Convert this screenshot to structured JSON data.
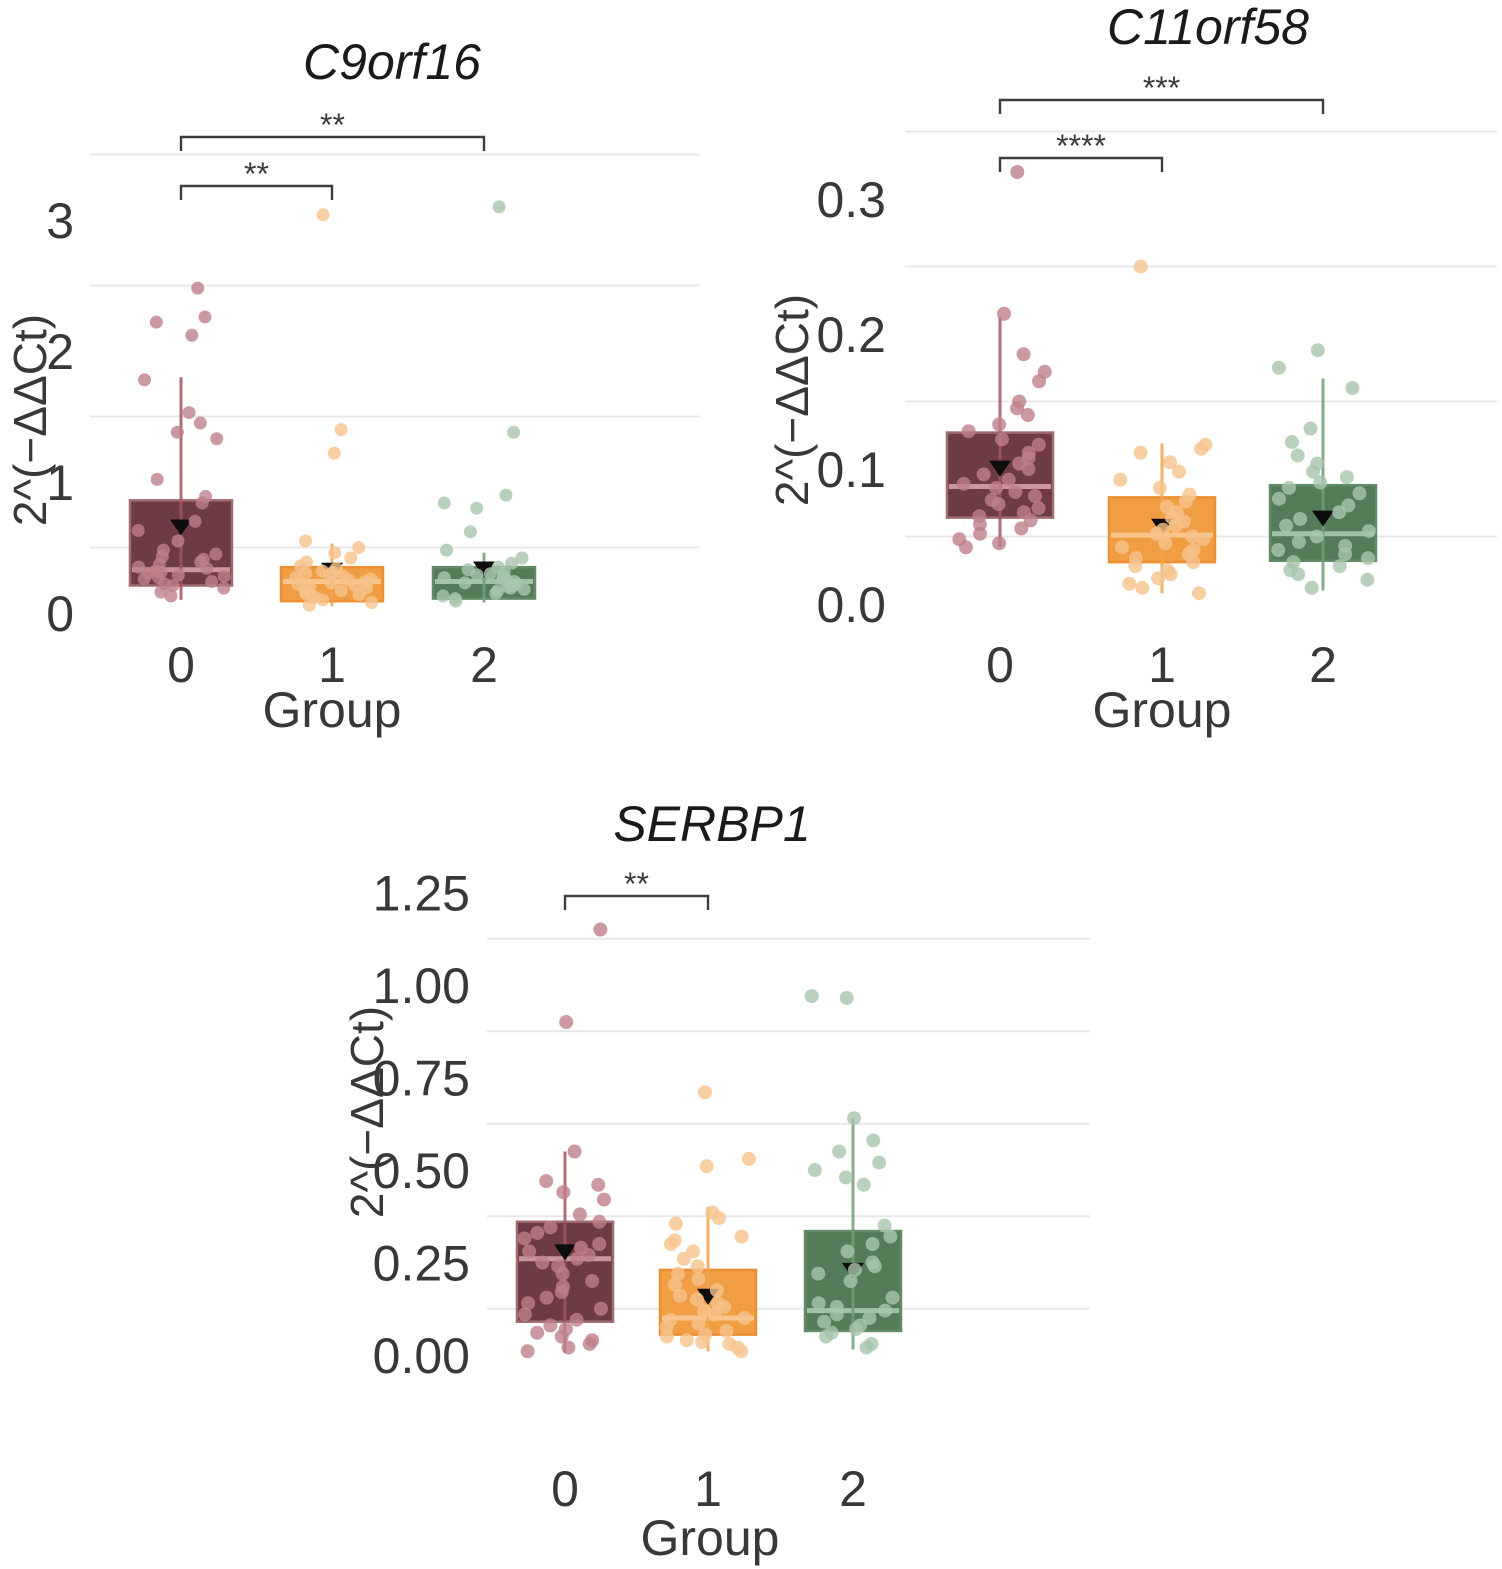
{
  "figure": {
    "background": "#ffffff",
    "gridline_color": "#e8e8e8",
    "text_color": "#383838",
    "title_color": "#1a1a1a",
    "bracket_color": "#3c3c3c",
    "mean_marker": "black-triangle-down",
    "mean_marker_color": "#0d0d0d"
  },
  "chart_data": [
    {
      "type": "bar",
      "subtype": "boxplot-with-jitter",
      "title": "C9orf16",
      "xlabel": "Group",
      "ylabel": "2^(−ΔΔCt)",
      "categories": [
        "0",
        "1",
        "2"
      ],
      "ytick_values": [
        0,
        1,
        2,
        3
      ],
      "ytick_labels": [
        "0",
        "1",
        "2",
        "3"
      ],
      "minor_gridlines": [
        0.5,
        1.5,
        2.5,
        3.5
      ],
      "ylim": [
        -0.15,
        3.6
      ],
      "grid": "minor-horizontal-only",
      "legend": "none",
      "groups": [
        {
          "category": "0",
          "colors": {
            "fill": "#6E3B44",
            "stroke": "#A06A71",
            "median": "#CB969C",
            "whisker": "#A25560",
            "point": "#BE8089"
          },
          "box": {
            "q1": 0.21,
            "median": 0.33,
            "q3": 0.86,
            "mean": 0.66,
            "whisker_low": 0.1,
            "whisker_high": 1.8
          },
          "points": [
            2.48,
            2.26,
            2.22,
            2.12,
            1.78,
            1.53,
            1.45,
            1.38,
            1.33,
            1.02,
            0.89,
            0.84,
            0.7,
            0.63,
            0.55,
            0.48,
            0.45,
            0.43,
            0.41,
            0.39,
            0.37,
            0.35,
            0.34,
            0.32,
            0.31,
            0.3,
            0.29,
            0.28,
            0.27,
            0.26,
            0.24,
            0.22,
            0.21,
            0.19,
            0.16,
            0.13
          ]
        },
        {
          "category": "1",
          "colors": {
            "fill": "#F19D43",
            "stroke": "#EC9035",
            "median": "#F8C68D",
            "whisker": "#F0A449",
            "point": "#F6C38C"
          },
          "box": {
            "q1": 0.09,
            "median": 0.24,
            "q3": 0.35,
            "mean": 0.33,
            "whisker_low": 0.05,
            "whisker_high": 0.53
          },
          "points": [
            3.04,
            1.4,
            1.22,
            0.55,
            0.5,
            0.46,
            0.42,
            0.39,
            0.36,
            0.34,
            0.32,
            0.31,
            0.3,
            0.29,
            0.28,
            0.27,
            0.26,
            0.25,
            0.24,
            0.23,
            0.22,
            0.21,
            0.2,
            0.19,
            0.18,
            0.17,
            0.16,
            0.15,
            0.14,
            0.13,
            0.12,
            0.1,
            0.08,
            0.06
          ]
        },
        {
          "category": "2",
          "colors": {
            "fill": "#567B59",
            "stroke": "#628C66",
            "median": "#A3C2A5",
            "whisker": "#729E77",
            "point": "#A8C6AB"
          },
          "box": {
            "q1": 0.11,
            "median": 0.24,
            "q3": 0.35,
            "mean": 0.34,
            "whisker_low": 0.08,
            "whisker_high": 0.46
          },
          "points": [
            3.1,
            1.38,
            0.9,
            0.84,
            0.8,
            0.62,
            0.48,
            0.42,
            0.38,
            0.35,
            0.33,
            0.31,
            0.3,
            0.29,
            0.28,
            0.27,
            0.26,
            0.25,
            0.24,
            0.23,
            0.22,
            0.21,
            0.2,
            0.19,
            0.18,
            0.17,
            0.15,
            0.13,
            0.11,
            0.09
          ]
        }
      ],
      "significance_brackets": [
        {
          "group_a": "0",
          "group_b": "1",
          "label": "**"
        },
        {
          "group_a": "0",
          "group_b": "2",
          "label": "**"
        }
      ]
    },
    {
      "type": "bar",
      "subtype": "boxplot-with-jitter",
      "title": "C11orf58",
      "xlabel": "Group",
      "ylabel": "2^(−ΔΔCt)",
      "categories": [
        "0",
        "1",
        "2"
      ],
      "ytick_values": [
        0,
        0.1,
        0.2,
        0.3
      ],
      "ytick_labels": [
        "0.0",
        "0.1",
        "0.2",
        "0.3"
      ],
      "minor_gridlines": [
        0.05,
        0.15,
        0.25,
        0.35
      ],
      "ylim": [
        -0.01,
        0.355
      ],
      "grid": "minor-horizontal-only",
      "legend": "none",
      "groups": [
        {
          "category": "0",
          "colors": {
            "fill": "#6E3B44",
            "stroke": "#A06A71",
            "median": "#CB969C",
            "whisker": "#A25560",
            "point": "#BE8089"
          },
          "box": {
            "q1": 0.064,
            "median": 0.087,
            "q3": 0.127,
            "mean": 0.101,
            "whisker_low": 0.042,
            "whisker_high": 0.213
          },
          "points": [
            0.32,
            0.215,
            0.185,
            0.172,
            0.165,
            0.15,
            0.145,
            0.14,
            0.133,
            0.128,
            0.122,
            0.118,
            0.112,
            0.108,
            0.104,
            0.1,
            0.096,
            0.092,
            0.089,
            0.086,
            0.083,
            0.08,
            0.077,
            0.074,
            0.071,
            0.068,
            0.065,
            0.062,
            0.059,
            0.056,
            0.052,
            0.048,
            0.045,
            0.042
          ]
        },
        {
          "category": "1",
          "colors": {
            "fill": "#F19D43",
            "stroke": "#EC9035",
            "median": "#F8C68D",
            "whisker": "#F0A449",
            "point": "#F6C38C"
          },
          "box": {
            "q1": 0.031,
            "median": 0.051,
            "q3": 0.079,
            "mean": 0.058,
            "whisker_low": 0.008,
            "whisker_high": 0.119
          },
          "points": [
            0.25,
            0.118,
            0.115,
            0.112,
            0.105,
            0.098,
            0.092,
            0.086,
            0.081,
            0.076,
            0.072,
            0.068,
            0.064,
            0.061,
            0.058,
            0.055,
            0.052,
            0.05,
            0.048,
            0.045,
            0.042,
            0.04,
            0.037,
            0.034,
            0.031,
            0.028,
            0.025,
            0.022,
            0.019,
            0.015,
            0.012,
            0.008
          ]
        },
        {
          "category": "2",
          "colors": {
            "fill": "#567B59",
            "stroke": "#628C66",
            "median": "#A3C2A5",
            "whisker": "#729E77",
            "point": "#A8C6AB"
          },
          "box": {
            "q1": 0.032,
            "median": 0.052,
            "q3": 0.088,
            "mean": 0.064,
            "whisker_low": 0.01,
            "whisker_high": 0.167
          },
          "points": [
            0.188,
            0.175,
            0.16,
            0.13,
            0.12,
            0.11,
            0.104,
            0.098,
            0.094,
            0.09,
            0.086,
            0.082,
            0.078,
            0.073,
            0.068,
            0.063,
            0.058,
            0.054,
            0.05,
            0.046,
            0.043,
            0.04,
            0.037,
            0.034,
            0.031,
            0.028,
            0.025,
            0.022,
            0.018,
            0.012
          ]
        }
      ],
      "significance_brackets": [
        {
          "group_a": "0",
          "group_b": "1",
          "label": "****"
        },
        {
          "group_a": "0",
          "group_b": "2",
          "label": "***"
        }
      ]
    },
    {
      "type": "bar",
      "subtype": "boxplot-with-jitter",
      "title": "SERBP1",
      "xlabel": "Group",
      "ylabel": "2^(−ΔΔCt)",
      "categories": [
        "0",
        "1",
        "2"
      ],
      "ytick_values": [
        0,
        0.25,
        0.5,
        0.75,
        1.0,
        1.25
      ],
      "ytick_labels": [
        "0.00",
        "0.25",
        "0.50",
        "0.75",
        "1.00",
        "1.25"
      ],
      "minor_gridlines": [
        0.125,
        0.375,
        0.625,
        0.875,
        1.125
      ],
      "ylim": [
        -0.04,
        1.3
      ],
      "grid": "minor-horizontal-only",
      "legend": "none",
      "groups": [
        {
          "category": "0",
          "colors": {
            "fill": "#6E3B44",
            "stroke": "#A06A71",
            "median": "#CB969C",
            "whisker": "#A25560",
            "point": "#BE8089"
          },
          "box": {
            "q1": 0.09,
            "median": 0.26,
            "q3": 0.36,
            "mean": 0.28,
            "whisker_low": 0.005,
            "whisker_high": 0.55
          },
          "points": [
            1.15,
            0.9,
            0.55,
            0.47,
            0.46,
            0.44,
            0.42,
            0.38,
            0.36,
            0.345,
            0.33,
            0.315,
            0.3,
            0.29,
            0.28,
            0.27,
            0.26,
            0.25,
            0.24,
            0.22,
            0.2,
            0.185,
            0.17,
            0.155,
            0.14,
            0.125,
            0.11,
            0.095,
            0.08,
            0.07,
            0.06,
            0.05,
            0.04,
            0.03,
            0.02,
            0.01
          ]
        },
        {
          "category": "1",
          "colors": {
            "fill": "#F19D43",
            "stroke": "#EC9035",
            "median": "#F8C68D",
            "whisker": "#F0A449",
            "point": "#F6C38C"
          },
          "box": {
            "q1": 0.055,
            "median": 0.1,
            "q3": 0.23,
            "mean": 0.16,
            "whisker_low": 0.01,
            "whisker_high": 0.4
          },
          "points": [
            0.71,
            0.53,
            0.51,
            0.385,
            0.37,
            0.355,
            0.32,
            0.31,
            0.3,
            0.28,
            0.26,
            0.24,
            0.22,
            0.205,
            0.19,
            0.175,
            0.16,
            0.15,
            0.14,
            0.13,
            0.12,
            0.11,
            0.1,
            0.095,
            0.085,
            0.075,
            0.065,
            0.055,
            0.05,
            0.04,
            0.035,
            0.03,
            0.02,
            0.01
          ]
        },
        {
          "category": "2",
          "colors": {
            "fill": "#567B59",
            "stroke": "#628C66",
            "median": "#A3C2A5",
            "whisker": "#729E77",
            "point": "#A8C6AB"
          },
          "box": {
            "q1": 0.065,
            "median": 0.12,
            "q3": 0.335,
            "mean": 0.23,
            "whisker_low": 0.015,
            "whisker_high": 0.64
          },
          "points": [
            0.97,
            0.965,
            0.64,
            0.58,
            0.55,
            0.52,
            0.5,
            0.48,
            0.46,
            0.35,
            0.32,
            0.3,
            0.28,
            0.25,
            0.24,
            0.23,
            0.22,
            0.2,
            0.155,
            0.14,
            0.13,
            0.12,
            0.11,
            0.1,
            0.09,
            0.08,
            0.07,
            0.06,
            0.05,
            0.03,
            0.02
          ]
        }
      ],
      "significance_brackets": [
        {
          "group_a": "0",
          "group_b": "1",
          "label": "**"
        }
      ]
    }
  ]
}
